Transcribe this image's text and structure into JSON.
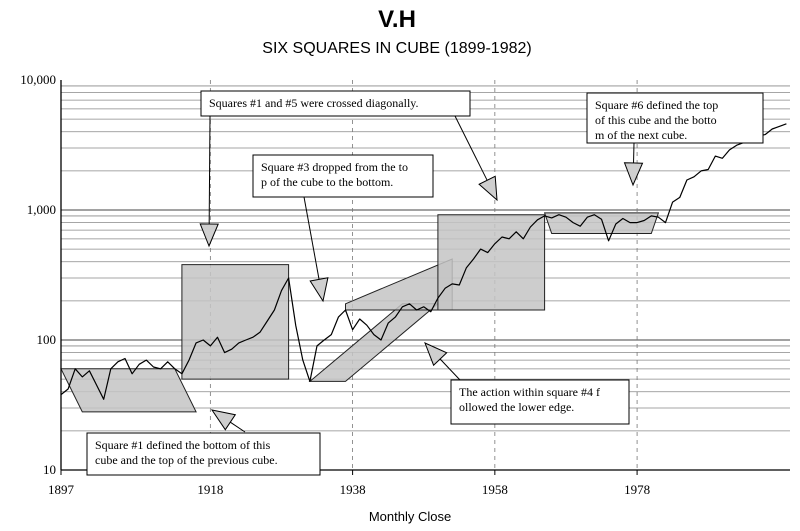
{
  "chart_data": {
    "type": "line",
    "title": "V.H",
    "subtitle": "SIX SQUARES IN CUBE (1899-1982)",
    "xlabel": "Monthly Close",
    "ylabel": "",
    "y_scale": "log",
    "xlim": [
      1897,
      1999.5
    ],
    "ylim": [
      10,
      10000
    ],
    "x_ticks": [
      "1897",
      "1918",
      "1938",
      "1958",
      "1978"
    ],
    "y_ticks": [
      "10",
      "100",
      "1,000",
      "10,000"
    ],
    "grid": {
      "horizontal": true,
      "vertical": "dashed"
    },
    "series": [
      {
        "x": [
          1897,
          1898,
          1899,
          1900,
          1901,
          1902,
          1903,
          1904,
          1905,
          1906,
          1907,
          1908,
          1909,
          1910,
          1911,
          1912,
          1913,
          1914,
          1915,
          1916,
          1917,
          1918,
          1919,
          1920,
          1921,
          1922,
          1923,
          1924,
          1925,
          1926,
          1927,
          1928,
          1929,
          1930,
          1931,
          1932,
          1933,
          1934,
          1935,
          1936,
          1937,
          1938,
          1939,
          1940,
          1941,
          1942,
          1943,
          1944,
          1945,
          1946,
          1947,
          1948,
          1949,
          1950,
          1951,
          1952,
          1953,
          1954,
          1955,
          1956,
          1957,
          1958,
          1959,
          1960,
          1961,
          1962,
          1963,
          1964,
          1965,
          1966,
          1967,
          1968,
          1969,
          1970,
          1971,
          1972,
          1973,
          1974,
          1975,
          1976,
          1977,
          1978,
          1979,
          1980,
          1981,
          1982,
          1983,
          1984,
          1985,
          1986,
          1987,
          1988,
          1989,
          1990,
          1991,
          1992,
          1993,
          1994,
          1995,
          1996,
          1997,
          1998,
          1999
        ],
        "values": [
          38,
          42,
          60,
          52,
          58,
          45,
          35,
          60,
          68,
          72,
          55,
          65,
          70,
          62,
          60,
          68,
          60,
          55,
          70,
          95,
          100,
          90,
          105,
          80,
          85,
          95,
          100,
          105,
          115,
          140,
          170,
          240,
          300,
          130,
          70,
          48,
          90,
          100,
          110,
          150,
          170,
          120,
          145,
          130,
          110,
          100,
          135,
          150,
          180,
          190,
          170,
          180,
          165,
          210,
          250,
          270,
          265,
          360,
          420,
          500,
          470,
          550,
          620,
          600,
          680,
          600,
          740,
          840,
          900,
          870,
          920,
          880,
          800,
          750,
          880,
          920,
          850,
          580,
          780,
          860,
          800,
          800,
          830,
          900,
          880,
          800,
          1150,
          1250,
          1700,
          1800,
          2000,
          2050,
          2600,
          2500,
          2900,
          3150,
          3300,
          3600,
          3700,
          3800,
          4200,
          4400,
          4600
        ]
      }
    ],
    "annotations": [
      "Squares #1 and #5 were crossed diagonally.",
      "Square #6 defined the top of this cube and the bottom of the next cube.",
      "Square #3 dropped from the top of the cube to the bottom.",
      "Square #1 defined the bottom of this cube and the top of the previous cube.",
      "The action within square #4 followed the lower edge."
    ]
  }
}
